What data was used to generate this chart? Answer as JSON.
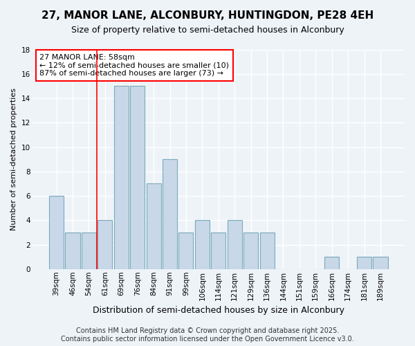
{
  "title1": "27, MANOR LANE, ALCONBURY, HUNTINGDON, PE28 4EH",
  "title2": "Size of property relative to semi-detached houses in Alconbury",
  "xlabel": "Distribution of semi-detached houses by size in Alconbury",
  "ylabel": "Number of semi-detached properties",
  "categories": [
    "39sqm",
    "46sqm",
    "54sqm",
    "61sqm",
    "69sqm",
    "76sqm",
    "84sqm",
    "91sqm",
    "99sqm",
    "106sqm",
    "114sqm",
    "121sqm",
    "129sqm",
    "136sqm",
    "144sqm",
    "151sqm",
    "159sqm",
    "166sqm",
    "174sqm",
    "181sqm",
    "189sqm"
  ],
  "values": [
    6,
    3,
    3,
    4,
    15,
    15,
    7,
    9,
    3,
    4,
    3,
    4,
    3,
    3,
    0,
    0,
    0,
    1,
    0,
    1,
    1
  ],
  "bar_color": "#C8D8E8",
  "bar_edge_color": "#7AAABB",
  "red_line_x": 2.5,
  "annotation_title": "27 MANOR LANE: 58sqm",
  "annotation_line1": "← 12% of semi-detached houses are smaller (10)",
  "annotation_line2": "87% of semi-detached houses are larger (73) →",
  "annotation_box_color": "white",
  "annotation_box_edge_color": "red",
  "ylim": [
    0,
    18
  ],
  "yticks": [
    0,
    2,
    4,
    6,
    8,
    10,
    12,
    14,
    16,
    18
  ],
  "footer1": "Contains HM Land Registry data © Crown copyright and database right 2025.",
  "footer2": "Contains public sector information licensed under the Open Government Licence v3.0.",
  "bg_color": "#EEF3F8",
  "grid_color": "#FFFFFF",
  "title1_fontsize": 11,
  "title2_fontsize": 9,
  "ylabel_fontsize": 8,
  "xlabel_fontsize": 9,
  "tick_fontsize": 7.5,
  "footer_fontsize": 7,
  "annotation_fontsize": 8
}
